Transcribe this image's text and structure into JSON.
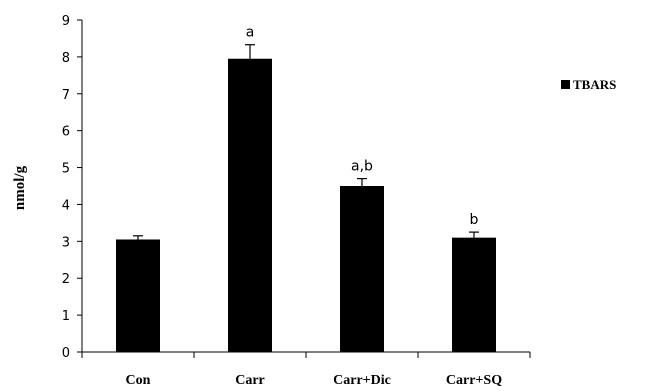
{
  "chart_data": {
    "type": "bar",
    "categories": [
      "Con",
      "Carr",
      "Carr+Dic",
      "Carr+SQ"
    ],
    "series": [
      {
        "name": "TBARS",
        "values": [
          3.05,
          7.95,
          4.5,
          3.1
        ],
        "errors": [
          0.1,
          0.38,
          0.2,
          0.15
        ],
        "color": "#000000"
      }
    ],
    "annotations": [
      "",
      "a",
      "a,b",
      "b"
    ],
    "xlabel": "",
    "ylabel": "nmol/g",
    "ylim": [
      0,
      9
    ],
    "yticks": [
      0,
      1,
      2,
      3,
      4,
      5,
      6,
      7,
      8,
      9
    ],
    "grid": false,
    "legend_position": "right"
  }
}
